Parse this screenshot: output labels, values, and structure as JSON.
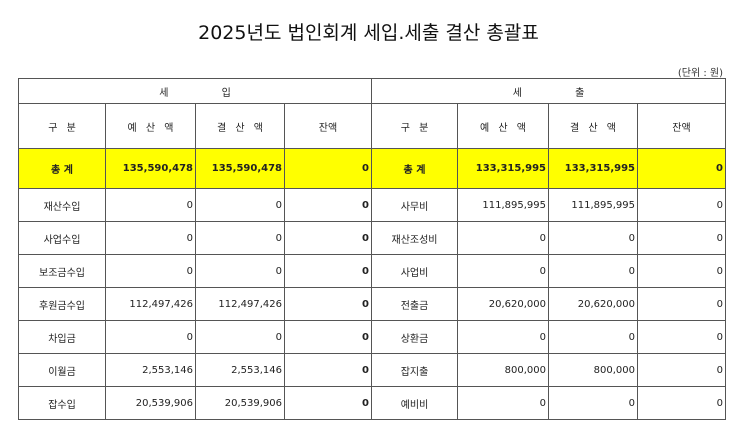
{
  "title": "2025년도 법인회계 세입.세출 결산 총괄표",
  "unit": "(단위 : 원)",
  "table": {
    "groups": [
      "세 입",
      "세 출"
    ],
    "columns": [
      "구 분",
      "예 산 액",
      "결 산 액",
      "잔액",
      "구 분",
      "예 산 액",
      "결 산 액",
      "잔액"
    ],
    "rows": [
      [
        "총 계",
        "135,590,478",
        "135,590,478",
        "0",
        "총 계",
        "133,315,995",
        "133,315,995",
        "0"
      ],
      [
        "재산수입",
        "0",
        "0",
        "0",
        "사무비",
        "111,895,995",
        "111,895,995",
        "0"
      ],
      [
        "사업수입",
        "0",
        "0",
        "0",
        "재산조성비",
        "0",
        "0",
        "0"
      ],
      [
        "보조금수입",
        "0",
        "0",
        "0",
        "사업비",
        "0",
        "0",
        "0"
      ],
      [
        "후원금수입",
        "112,497,426",
        "112,497,426",
        "0",
        "전출금",
        "20,620,000",
        "20,620,000",
        "0"
      ],
      [
        "차입금",
        "0",
        "0",
        "0",
        "상환금",
        "0",
        "0",
        "0"
      ],
      [
        "이월금",
        "2,553,146",
        "2,553,146",
        "0",
        "잡지출",
        "800,000",
        "800,000",
        "0"
      ],
      [
        "잡수입",
        "20,539,906",
        "20,539,906",
        "0",
        "예비비",
        "0",
        "0",
        "0"
      ]
    ]
  }
}
